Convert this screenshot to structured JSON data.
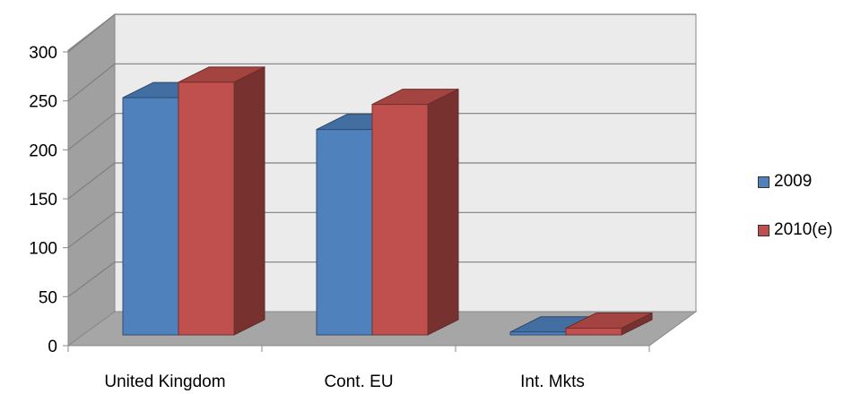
{
  "chart_data": {
    "type": "bar",
    "categories": [
      "United Kingdom",
      "Cont. EU",
      "Int. Mkts"
    ],
    "series": [
      {
        "name": "2009",
        "values": [
          246,
          213,
          3
        ],
        "color": "#4f81bd"
      },
      {
        "name": "2010(e)",
        "values": [
          262,
          239,
          7
        ],
        "color": "#c0504d"
      }
    ],
    "y_ticks": [
      "0",
      "50",
      "100",
      "150",
      "200",
      "250",
      "300"
    ],
    "ylim": [
      0,
      300
    ],
    "grid": true,
    "legend_position": "right"
  }
}
